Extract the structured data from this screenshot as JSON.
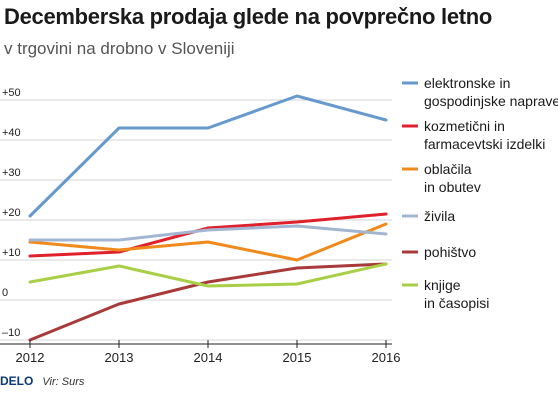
{
  "chart_data": {
    "type": "line",
    "title": "Decemberska prodaja glede na povprečno letno",
    "subtitle": "v trgovini na drobno v Sloveniji",
    "x": [
      "2012",
      "2013",
      "2014",
      "2015",
      "2016"
    ],
    "ylim": [
      -10,
      57
    ],
    "yticks": [
      -10,
      0,
      10,
      20,
      30,
      40,
      50
    ],
    "ytick_labels": [
      "–10",
      "0",
      "+10",
      "+20",
      "+30",
      "+40",
      "+50"
    ],
    "grid": true,
    "legend_position": "right",
    "series": [
      {
        "name": "elektronske in gospodinjske naprave",
        "label_lines": [
          "elektronske in",
          "gospodinjske naprave"
        ],
        "color": "#6699cc",
        "values": [
          21,
          43,
          43,
          51,
          45
        ]
      },
      {
        "name": "kozmetični in farmacevtski izdelki",
        "label_lines": [
          "kozmetični in",
          "farmacevtski izdelki"
        ],
        "color": "#e0212b",
        "values": [
          11,
          12,
          18,
          19.5,
          21.5
        ]
      },
      {
        "name": "oblačila in obutev",
        "label_lines": [
          "oblačila",
          "in obutev"
        ],
        "color": "#f08a1c",
        "values": [
          14.5,
          12.5,
          14.5,
          10,
          19
        ]
      },
      {
        "name": "živila",
        "label_lines": [
          "živila"
        ],
        "color": "#a3b6d1",
        "values": [
          15,
          15,
          17.5,
          18.5,
          16.5
        ]
      },
      {
        "name": "pohištvo",
        "label_lines": [
          "pohištvo"
        ],
        "color": "#a83a3a",
        "values": [
          -10,
          -1,
          4.5,
          8,
          9
        ]
      },
      {
        "name": "knjige in časopisi",
        "label_lines": [
          "knjige",
          "in časopisi"
        ],
        "color": "#a8cf45",
        "values": [
          4.5,
          8.5,
          3.5,
          4,
          9
        ]
      }
    ]
  },
  "footer": {
    "logo": "DELO",
    "source": "Vir: Surs"
  }
}
